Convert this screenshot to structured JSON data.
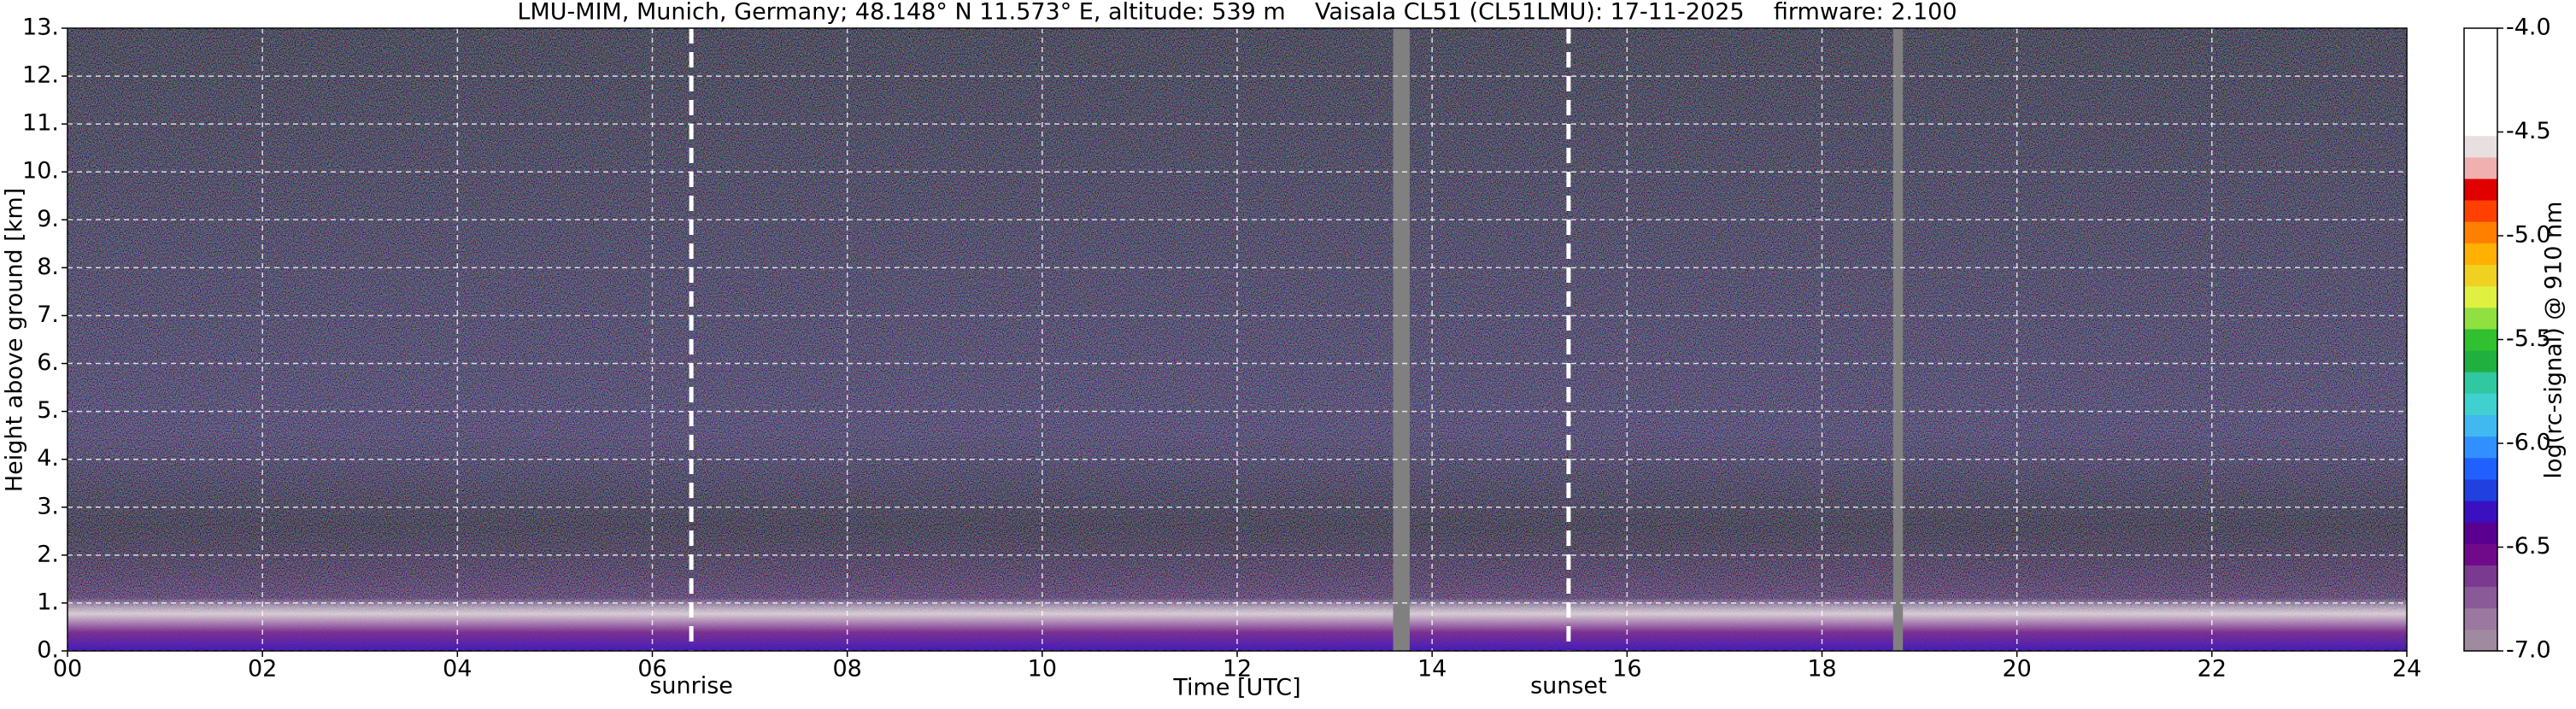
{
  "chart_data": {
    "type": "heatmap",
    "title": "LMU-MIM, Munich, Germany; 48.148° N 11.573° E, altitude: 539 m    Vaisala CL51 (CL51LMU): 17-11-2025    firmware: 2.100",
    "x_label": "Time [UTC]",
    "y_label": "Height above ground [km]",
    "xlim": [
      0,
      24
    ],
    "xticks": [
      {
        "value": 0,
        "label": "00"
      },
      {
        "value": 2,
        "label": "02"
      },
      {
        "value": 4,
        "label": "04"
      },
      {
        "value": 6,
        "label": "06"
      },
      {
        "value": 8,
        "label": "08"
      },
      {
        "value": 10,
        "label": "10"
      },
      {
        "value": 12,
        "label": "12"
      },
      {
        "value": 14,
        "label": "14"
      },
      {
        "value": 16,
        "label": "16"
      },
      {
        "value": 18,
        "label": "18"
      },
      {
        "value": 20,
        "label": "20"
      },
      {
        "value": 22,
        "label": "22"
      },
      {
        "value": 24,
        "label": "24"
      }
    ],
    "ylim": [
      0,
      13
    ],
    "yticks": [
      {
        "value": 0,
        "label": "0."
      },
      {
        "value": 1,
        "label": "1."
      },
      {
        "value": 2,
        "label": "2."
      },
      {
        "value": 3,
        "label": "3."
      },
      {
        "value": 4,
        "label": "4."
      },
      {
        "value": 5,
        "label": "5."
      },
      {
        "value": 6,
        "label": "6."
      },
      {
        "value": 7,
        "label": "7."
      },
      {
        "value": 8,
        "label": "8."
      },
      {
        "value": 9,
        "label": "9."
      },
      {
        "value": 10,
        "label": "10."
      },
      {
        "value": 11,
        "label": "11."
      },
      {
        "value": 12,
        "label": "12."
      },
      {
        "value": 13,
        "label": "13."
      }
    ],
    "grid": true,
    "annotations": [
      {
        "text": "sunrise",
        "x": 6.4
      },
      {
        "text": "sunset",
        "x": 15.4
      }
    ],
    "missing_data": [
      [
        13.6,
        13.77
      ],
      [
        18.73,
        18.83
      ]
    ],
    "colorbar": {
      "label": "log(rc-signal) @ 910 nm",
      "clim": [
        -7,
        -4
      ],
      "ticks": [
        {
          "value": -4,
          "label": "-4.0"
        },
        {
          "value": -4.5,
          "label": "-4.5"
        },
        {
          "value": -5,
          "label": "-5.0"
        },
        {
          "value": -5.5,
          "label": "-5.5"
        },
        {
          "value": -6,
          "label": "-6.0"
        },
        {
          "value": -6.5,
          "label": "-6.5"
        },
        {
          "value": -7,
          "label": "-7.0"
        }
      ],
      "colors": [
        "#a08aa0",
        "#9a78a0",
        "#8a5a98",
        "#7a3a90",
        "#700a8a",
        "#5a0090",
        "#3a10c0",
        "#2040e0",
        "#2060ff",
        "#3090ff",
        "#40b8f0",
        "#40d0d0",
        "#30c8a0",
        "#20b040",
        "#30c030",
        "#90e040",
        "#e0f040",
        "#f0d020",
        "#ffb000",
        "#ff8000",
        "#ff4000",
        "#e00000",
        "#f0b0b0",
        "#e8e0e0",
        "#ffffff",
        "#ffffff",
        "#ffffff",
        "#ffffff",
        "#ffffff"
      ]
    }
  }
}
